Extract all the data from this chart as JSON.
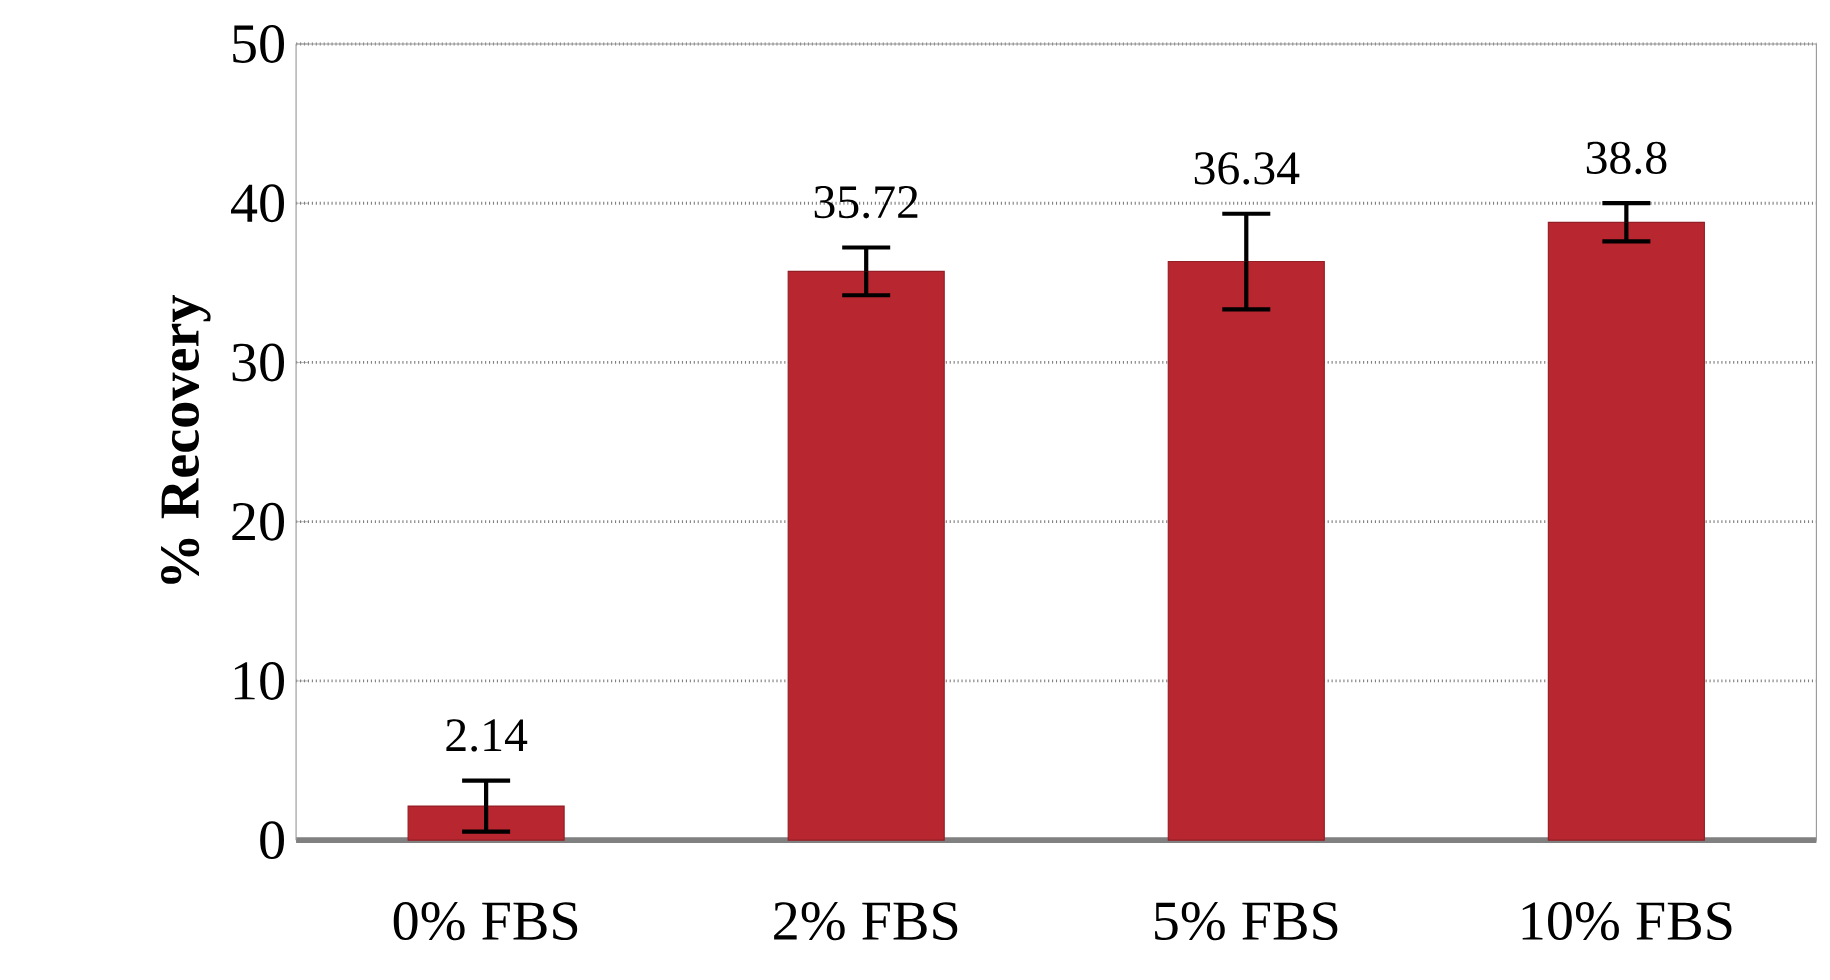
{
  "chart_data": {
    "type": "bar",
    "ylabel": "% Recovery",
    "categories": [
      "0% FBS",
      "2% FBS",
      "5% FBS",
      "10% FBS"
    ],
    "values": [
      2.14,
      35.72,
      36.34,
      38.8
    ],
    "errors": [
      1.6,
      1.5,
      3.0,
      1.2
    ],
    "color": "#b8262f",
    "data_labels": true,
    "ylim": [
      0,
      50
    ],
    "yticks": [
      0,
      10,
      20,
      30,
      40,
      50
    ],
    "grid": "y"
  }
}
